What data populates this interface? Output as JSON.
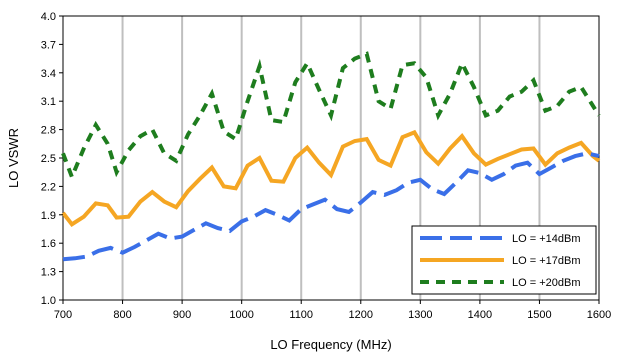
{
  "chart_data": {
    "type": "line",
    "xlabel": "LO Frequency (MHz)",
    "ylabel": "LO VSWR",
    "xlim": [
      700,
      1600
    ],
    "ylim": [
      1.0,
      4.0
    ],
    "x_ticks": [
      "700",
      "800",
      "900",
      "1000",
      "1100",
      "1200",
      "1300",
      "1400",
      "1500",
      "1600"
    ],
    "y_ticks": [
      "1.0",
      "1.3",
      "1.6",
      "1.9",
      "2.2",
      "2.5",
      "2.8",
      "3.1",
      "3.4",
      "3.7",
      "4.0"
    ],
    "grid": "vertical",
    "legend_position": "bottom-right",
    "series": [
      {
        "name": "LO = +14dBm",
        "color": "#3a6fe8",
        "dash": "long-dash",
        "x": [
          700,
          720,
          740,
          760,
          780,
          800,
          820,
          840,
          860,
          880,
          900,
          920,
          940,
          960,
          980,
          1000,
          1020,
          1040,
          1060,
          1080,
          1100,
          1120,
          1140,
          1160,
          1180,
          1200,
          1220,
          1240,
          1260,
          1280,
          1300,
          1320,
          1340,
          1360,
          1380,
          1400,
          1420,
          1440,
          1460,
          1480,
          1500,
          1520,
          1540,
          1560,
          1580,
          1600
        ],
        "values": [
          1.43,
          1.44,
          1.46,
          1.52,
          1.55,
          1.5,
          1.56,
          1.63,
          1.7,
          1.65,
          1.67,
          1.74,
          1.81,
          1.76,
          1.73,
          1.83,
          1.88,
          1.95,
          1.9,
          1.84,
          1.96,
          2.01,
          2.06,
          1.96,
          1.93,
          2.03,
          2.14,
          2.11,
          2.16,
          2.24,
          2.27,
          2.17,
          2.12,
          2.24,
          2.37,
          2.34,
          2.27,
          2.33,
          2.42,
          2.45,
          2.33,
          2.4,
          2.47,
          2.52,
          2.55,
          2.52
        ]
      },
      {
        "name": "LO = +17dBm",
        "color": "#f5a623",
        "dash": "solid",
        "x": [
          700,
          715,
          735,
          755,
          775,
          790,
          810,
          830,
          850,
          870,
          890,
          910,
          930,
          950,
          970,
          990,
          1010,
          1030,
          1050,
          1070,
          1090,
          1110,
          1130,
          1150,
          1170,
          1190,
          1210,
          1230,
          1250,
          1270,
          1290,
          1310,
          1330,
          1350,
          1370,
          1390,
          1410,
          1430,
          1450,
          1470,
          1490,
          1510,
          1530,
          1550,
          1570,
          1590,
          1600
        ],
        "values": [
          1.92,
          1.8,
          1.88,
          2.02,
          2.0,
          1.87,
          1.88,
          2.04,
          2.14,
          2.04,
          1.98,
          2.15,
          2.28,
          2.4,
          2.2,
          2.18,
          2.42,
          2.5,
          2.26,
          2.25,
          2.5,
          2.61,
          2.45,
          2.32,
          2.62,
          2.68,
          2.7,
          2.48,
          2.42,
          2.72,
          2.77,
          2.56,
          2.44,
          2.6,
          2.73,
          2.55,
          2.43,
          2.49,
          2.54,
          2.59,
          2.6,
          2.43,
          2.55,
          2.61,
          2.66,
          2.52,
          2.47
        ]
      },
      {
        "name": "LO = +20dBm",
        "color": "#1e7d1e",
        "dash": "short-dash",
        "x": [
          700,
          715,
          735,
          755,
          775,
          790,
          810,
          830,
          850,
          870,
          890,
          910,
          930,
          950,
          970,
          990,
          1010,
          1030,
          1050,
          1070,
          1090,
          1110,
          1130,
          1150,
          1170,
          1190,
          1210,
          1230,
          1250,
          1270,
          1290,
          1310,
          1330,
          1350,
          1370,
          1390,
          1410,
          1430,
          1450,
          1470,
          1490,
          1510,
          1530,
          1550,
          1570,
          1590,
          1600
        ],
        "values": [
          2.55,
          2.3,
          2.6,
          2.85,
          2.65,
          2.35,
          2.58,
          2.73,
          2.8,
          2.55,
          2.47,
          2.75,
          2.95,
          3.18,
          2.78,
          2.7,
          3.1,
          3.47,
          2.9,
          2.88,
          3.3,
          3.5,
          3.22,
          2.95,
          3.45,
          3.55,
          3.6,
          3.1,
          3.02,
          3.48,
          3.5,
          3.35,
          2.95,
          3.18,
          3.5,
          3.25,
          2.95,
          3.0,
          3.15,
          3.2,
          3.32,
          3.0,
          3.05,
          3.2,
          3.25,
          3.05,
          2.95
        ]
      }
    ]
  }
}
